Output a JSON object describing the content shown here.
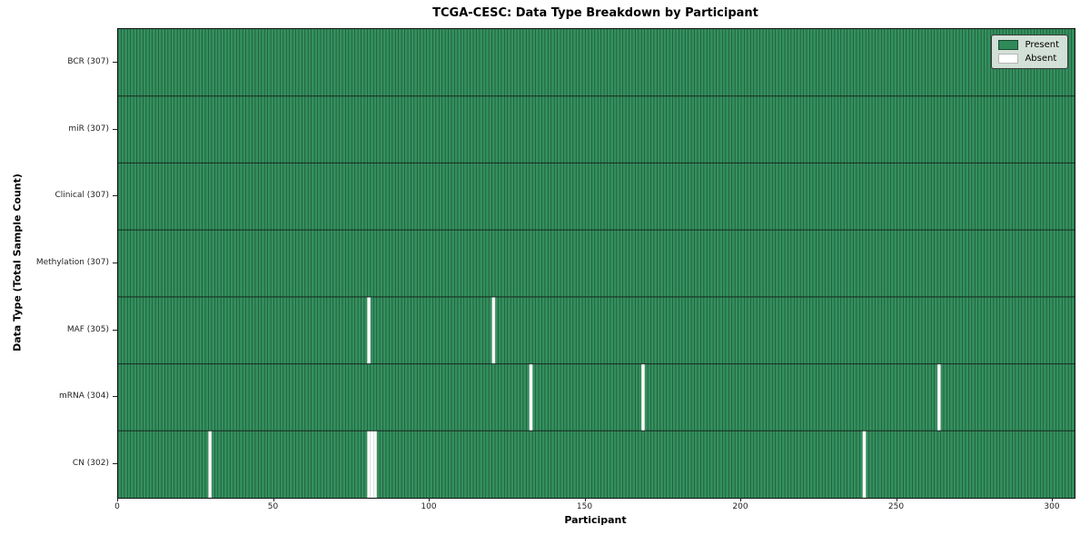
{
  "chart_data": {
    "type": "heatmap",
    "title": "TCGA-CESC: Data Type Breakdown by Participant",
    "xlabel": "Participant",
    "ylabel": "Data Type (Total Sample Count)",
    "xlim": [
      0,
      307
    ],
    "n_participants": 307,
    "x_ticks": [
      0,
      50,
      100,
      150,
      200,
      250,
      300
    ],
    "grid": false,
    "legend_position": "upper right",
    "rows": [
      {
        "label": "BCR (307)",
        "data_type": "BCR",
        "total": 307,
        "absent_participants": []
      },
      {
        "label": "miR (307)",
        "data_type": "miR",
        "total": 307,
        "absent_participants": []
      },
      {
        "label": "Clinical (307)",
        "data_type": "Clinical",
        "total": 307,
        "absent_participants": []
      },
      {
        "label": "Methylation (307)",
        "data_type": "Methylation",
        "total": 307,
        "absent_participants": []
      },
      {
        "label": "MAF (305)",
        "data_type": "MAF",
        "total": 305,
        "absent_participants": [
          80,
          120
        ]
      },
      {
        "label": "mRNA (304)",
        "data_type": "mRNA",
        "total": 304,
        "absent_participants": [
          132,
          168,
          263
        ]
      },
      {
        "label": "CN (302)",
        "data_type": "CN",
        "total": 302,
        "absent_participants": [
          29,
          80,
          81,
          82,
          239
        ]
      }
    ],
    "legend": [
      {
        "label": "Present",
        "color": "#2e8b57"
      },
      {
        "label": "Absent",
        "color": "#ffffff"
      }
    ],
    "colors": {
      "present": "#33915e",
      "absent": "#ffffff",
      "bar_edge": "#1d4732",
      "absent_edge": "#b9c9bd",
      "row_divider": "#19281f",
      "frame": "#111111",
      "tick": "#222222"
    }
  }
}
